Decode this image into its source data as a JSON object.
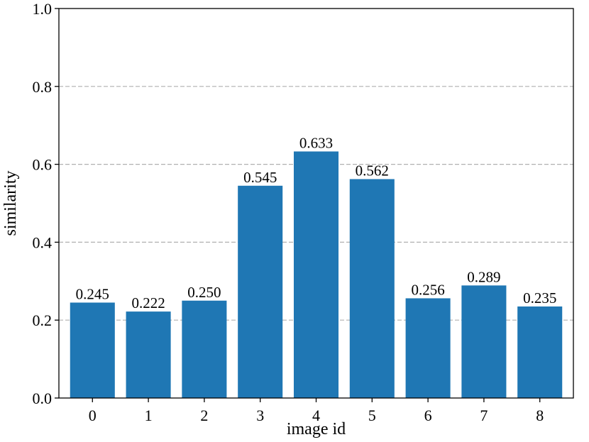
{
  "chart_data": {
    "type": "bar",
    "title": "",
    "xlabel": "image id",
    "ylabel": "similarity",
    "categories": [
      "0",
      "1",
      "2",
      "3",
      "4",
      "5",
      "6",
      "7",
      "8"
    ],
    "values": [
      0.245,
      0.222,
      0.25,
      0.545,
      0.633,
      0.562,
      0.256,
      0.289,
      0.235
    ],
    "value_labels": [
      "0.245",
      "0.222",
      "0.250",
      "0.545",
      "0.633",
      "0.562",
      "0.256",
      "0.289",
      "0.235"
    ],
    "ylim": [
      0.0,
      1.0
    ],
    "yticks": [
      0.0,
      0.2,
      0.4,
      0.6,
      0.8,
      1.0
    ],
    "ytick_labels": [
      "0.0",
      "0.2",
      "0.4",
      "0.6",
      "0.8",
      "1.0"
    ],
    "grid": "horizontal-dashed",
    "legend": "none",
    "bar_color": "#1f77b4",
    "grid_color": "#b0b0b0"
  }
}
